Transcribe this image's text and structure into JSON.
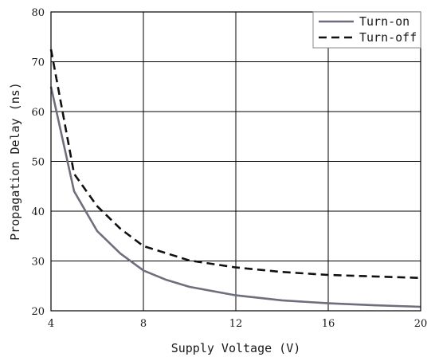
{
  "chart_data": {
    "type": "line",
    "title": "",
    "xlabel": "Supply Voltage (V)",
    "ylabel": "Propagation Delay (ns)",
    "xlim": [
      4,
      20
    ],
    "ylim": [
      20,
      80
    ],
    "xticks": [
      4,
      8,
      12,
      16,
      20
    ],
    "yticks": [
      20,
      30,
      40,
      50,
      60,
      70,
      80
    ],
    "xtick_labels": [
      "4",
      "8",
      "12",
      "16",
      "20"
    ],
    "ytick_labels": [
      "20",
      "30",
      "40",
      "50",
      "60",
      "70",
      "80"
    ],
    "grid": true,
    "legend_position": "top-right",
    "series": [
      {
        "name": "Turn-on",
        "style": "solid",
        "color": "#6d6f7c",
        "x": [
          4,
          5,
          6,
          7,
          8,
          9,
          10,
          12,
          14,
          16,
          18,
          20
        ],
        "y": [
          65,
          44,
          36,
          31.5,
          28.1,
          26.2,
          24.8,
          23.1,
          22.1,
          21.5,
          21.1,
          20.8
        ]
      },
      {
        "name": "Turn-off",
        "style": "dashed",
        "color": "#111111",
        "x": [
          4,
          5,
          6,
          7,
          8,
          10,
          12,
          14,
          16,
          18,
          20
        ],
        "y": [
          72.5,
          47.5,
          41,
          36.5,
          33,
          30.1,
          28.7,
          27.8,
          27.2,
          26.9,
          26.6
        ]
      }
    ]
  }
}
